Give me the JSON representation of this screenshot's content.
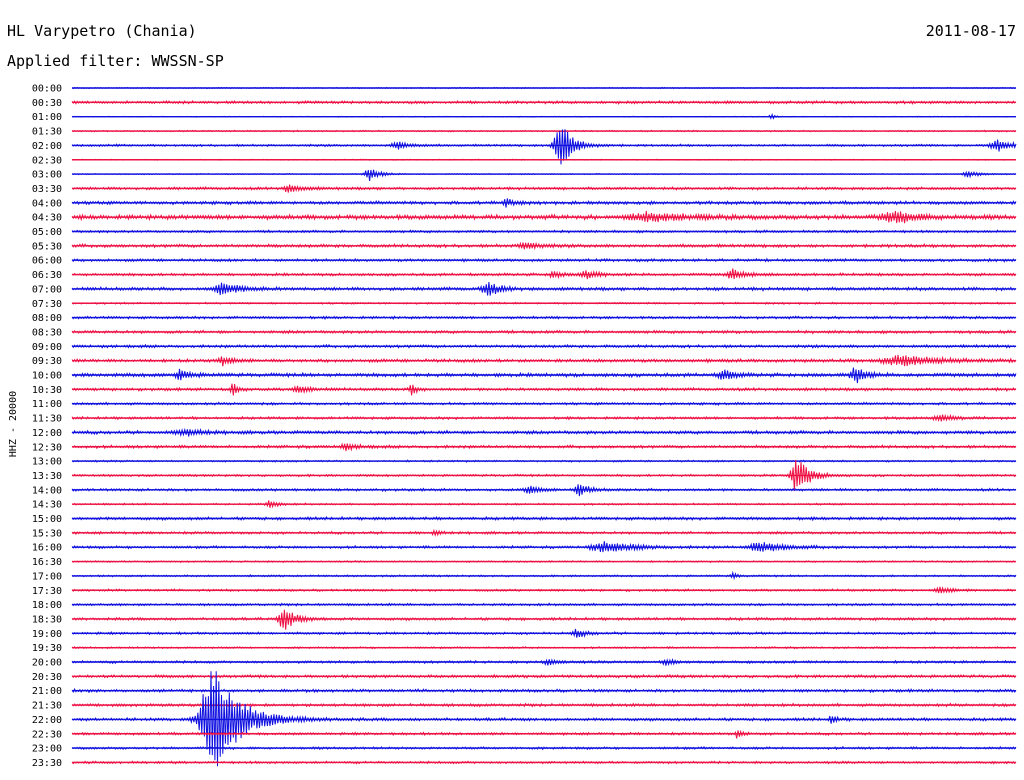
{
  "header": {
    "station": "HL Varypetro (Chania)",
    "date": "2011-08-17",
    "filter": "Applied filter: WWSSN-SP",
    "channel": "HHZ - 20000"
  },
  "colors": {
    "odd": "#1010e0",
    "even": "#ee1144"
  },
  "chart_data": {
    "type": "line",
    "title": "HL Varypetro (Chania)",
    "subtitle": "Applied filter: WWSSN-SP",
    "ylabel": "HHZ - 20000",
    "xlabel": "",
    "rows": [
      "00:00",
      "00:30",
      "01:00",
      "01:30",
      "02:00",
      "02:30",
      "03:00",
      "03:30",
      "04:00",
      "04:30",
      "05:00",
      "05:30",
      "06:00",
      "06:30",
      "07:00",
      "07:30",
      "08:00",
      "08:30",
      "09:00",
      "09:30",
      "10:00",
      "10:30",
      "11:00",
      "11:30",
      "12:00",
      "12:30",
      "13:00",
      "13:30",
      "14:00",
      "14:30",
      "15:00",
      "15:30",
      "16:00",
      "16:30",
      "17:00",
      "17:30",
      "18:00",
      "18:30",
      "19:00",
      "19:30",
      "20:00",
      "20:30",
      "21:00",
      "21:30",
      "22:00",
      "22:30",
      "23:00",
      "23:30"
    ],
    "row_noise": [
      0.6,
      1.5,
      0.5,
      0.8,
      1.2,
      0.6,
      0.6,
      1.5,
      1.8,
      2.5,
      1.3,
      1.8,
      1.5,
      1.5,
      1.8,
      1.0,
      1.4,
      1.6,
      1.6,
      1.8,
      2.0,
      1.6,
      1.4,
      1.4,
      1.8,
      1.6,
      1.0,
      1.2,
      1.4,
      1.0,
      1.6,
      1.4,
      1.4,
      0.9,
      1.0,
      1.2,
      1.3,
      1.5,
      1.3,
      1.0,
      1.4,
      1.6,
      1.6,
      1.6,
      1.6,
      1.4,
      1.3,
      1.3
    ],
    "events": [
      {
        "row": 2,
        "x": 0.74,
        "amp": 3,
        "width": 0.003
      },
      {
        "row": 4,
        "x": 0.345,
        "amp": 4,
        "width": 0.01
      },
      {
        "row": 4,
        "x": 0.517,
        "amp": 26,
        "width": 0.01
      },
      {
        "row": 4,
        "x": 0.98,
        "amp": 6,
        "width": 0.012
      },
      {
        "row": 6,
        "x": 0.315,
        "amp": 7,
        "width": 0.008
      },
      {
        "row": 6,
        "x": 0.95,
        "amp": 3,
        "width": 0.01
      },
      {
        "row": 7,
        "x": 0.23,
        "amp": 4,
        "width": 0.01
      },
      {
        "row": 8,
        "x": 0.46,
        "amp": 4,
        "width": 0.006
      },
      {
        "row": 9,
        "x": 0.61,
        "amp": 4,
        "width": 0.03
      },
      {
        "row": 9,
        "x": 0.87,
        "amp": 6,
        "width": 0.02
      },
      {
        "row": 11,
        "x": 0.48,
        "amp": 4,
        "width": 0.01
      },
      {
        "row": 13,
        "x": 0.51,
        "amp": 4,
        "width": 0.006
      },
      {
        "row": 13,
        "x": 0.545,
        "amp": 4,
        "width": 0.01
      },
      {
        "row": 13,
        "x": 0.7,
        "amp": 5,
        "width": 0.01
      },
      {
        "row": 14,
        "x": 0.16,
        "amp": 6,
        "width": 0.015
      },
      {
        "row": 14,
        "x": 0.44,
        "amp": 7,
        "width": 0.01
      },
      {
        "row": 19,
        "x": 0.16,
        "amp": 4,
        "width": 0.008
      },
      {
        "row": 19,
        "x": 0.88,
        "amp": 5,
        "width": 0.03
      },
      {
        "row": 20,
        "x": 0.115,
        "amp": 5,
        "width": 0.008
      },
      {
        "row": 20,
        "x": 0.69,
        "amp": 6,
        "width": 0.008
      },
      {
        "row": 20,
        "x": 0.83,
        "amp": 9,
        "width": 0.008
      },
      {
        "row": 21,
        "x": 0.17,
        "amp": 7,
        "width": 0.004
      },
      {
        "row": 21,
        "x": 0.24,
        "amp": 3,
        "width": 0.01
      },
      {
        "row": 21,
        "x": 0.36,
        "amp": 6,
        "width": 0.004
      },
      {
        "row": 23,
        "x": 0.92,
        "amp": 3,
        "width": 0.012
      },
      {
        "row": 24,
        "x": 0.12,
        "amp": 3,
        "width": 0.015
      },
      {
        "row": 25,
        "x": 0.29,
        "amp": 3,
        "width": 0.01
      },
      {
        "row": 27,
        "x": 0.768,
        "amp": 19,
        "width": 0.01
      },
      {
        "row": 28,
        "x": 0.485,
        "amp": 4,
        "width": 0.008
      },
      {
        "row": 28,
        "x": 0.538,
        "amp": 6,
        "width": 0.008
      },
      {
        "row": 29,
        "x": 0.21,
        "amp": 4,
        "width": 0.006
      },
      {
        "row": 31,
        "x": 0.385,
        "amp": 3,
        "width": 0.004
      },
      {
        "row": 32,
        "x": 0.565,
        "amp": 5,
        "width": 0.025
      },
      {
        "row": 32,
        "x": 0.73,
        "amp": 5,
        "width": 0.02
      },
      {
        "row": 34,
        "x": 0.7,
        "amp": 4,
        "width": 0.003
      },
      {
        "row": 35,
        "x": 0.92,
        "amp": 3,
        "width": 0.01
      },
      {
        "row": 37,
        "x": 0.225,
        "amp": 11,
        "width": 0.01
      },
      {
        "row": 38,
        "x": 0.535,
        "amp": 4,
        "width": 0.008
      },
      {
        "row": 40,
        "x": 0.505,
        "amp": 3,
        "width": 0.008
      },
      {
        "row": 40,
        "x": 0.63,
        "amp": 3,
        "width": 0.008
      },
      {
        "row": 44,
        "x": 0.15,
        "amp": 55,
        "width": 0.022
      },
      {
        "row": 44,
        "x": 0.805,
        "amp": 5,
        "width": 0.004
      },
      {
        "row": 45,
        "x": 0.705,
        "amp": 4,
        "width": 0.004
      }
    ]
  }
}
